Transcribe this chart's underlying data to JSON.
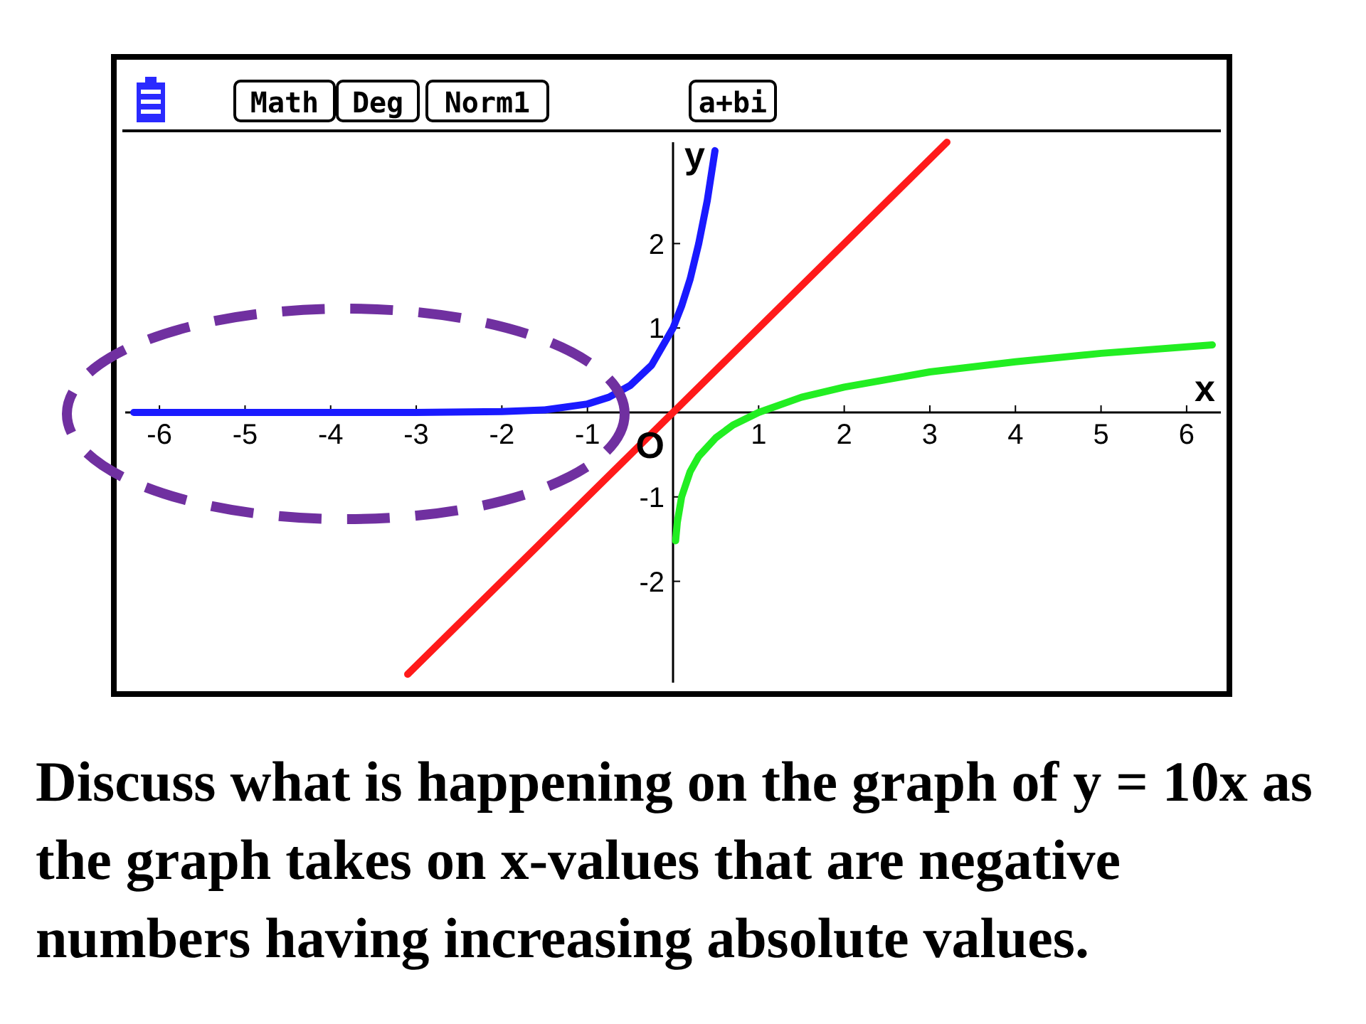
{
  "chart_data": {
    "type": "line",
    "xlabel": "x",
    "ylabel": "y",
    "xlim": [
      -6.4,
      6.4
    ],
    "ylim": [
      -3.2,
      3.2
    ],
    "xticks": [
      -6,
      -5,
      -4,
      -3,
      -2,
      -1,
      1,
      2,
      3,
      4,
      5,
      6
    ],
    "yticks": [
      -2,
      -1,
      1,
      2
    ],
    "marker": "none",
    "line_style": "solid",
    "series": [
      {
        "color": "#1a1aff",
        "x": [
          -6.3,
          -5,
          -4,
          -3,
          -2,
          -1.5,
          -1,
          -0.75,
          -0.5,
          -0.25,
          0,
          0.1,
          0.2,
          0.3,
          0.4,
          0.49
        ],
        "values": [
          0,
          0,
          0,
          0,
          0.01,
          0.03,
          0.1,
          0.18,
          0.32,
          0.56,
          1,
          1.26,
          1.58,
          2,
          2.51,
          3.1
        ]
      },
      {
        "color": "#ff1a1a",
        "x": [
          -3.1,
          3.2
        ],
        "values": [
          -3.1,
          3.2
        ]
      },
      {
        "color": "#22ee22",
        "x": [
          0.03,
          0.05,
          0.1,
          0.2,
          0.3,
          0.5,
          0.7,
          1,
          1.5,
          2,
          3,
          4,
          5,
          6.3
        ],
        "values": [
          -1.52,
          -1.3,
          -1,
          -0.7,
          -0.52,
          -0.3,
          -0.15,
          0,
          0.18,
          0.3,
          0.48,
          0.6,
          0.7,
          0.8
        ]
      }
    ],
    "annotations": [
      "Math",
      "Deg",
      "Norm1",
      "a+bi",
      {
        "text": "O",
        "x": 0,
        "y": 0
      },
      "Discuss what is happening on the graph of y = 10x as the graph takes on x-values that are negative numbers having increasing absolute values."
    ]
  }
}
